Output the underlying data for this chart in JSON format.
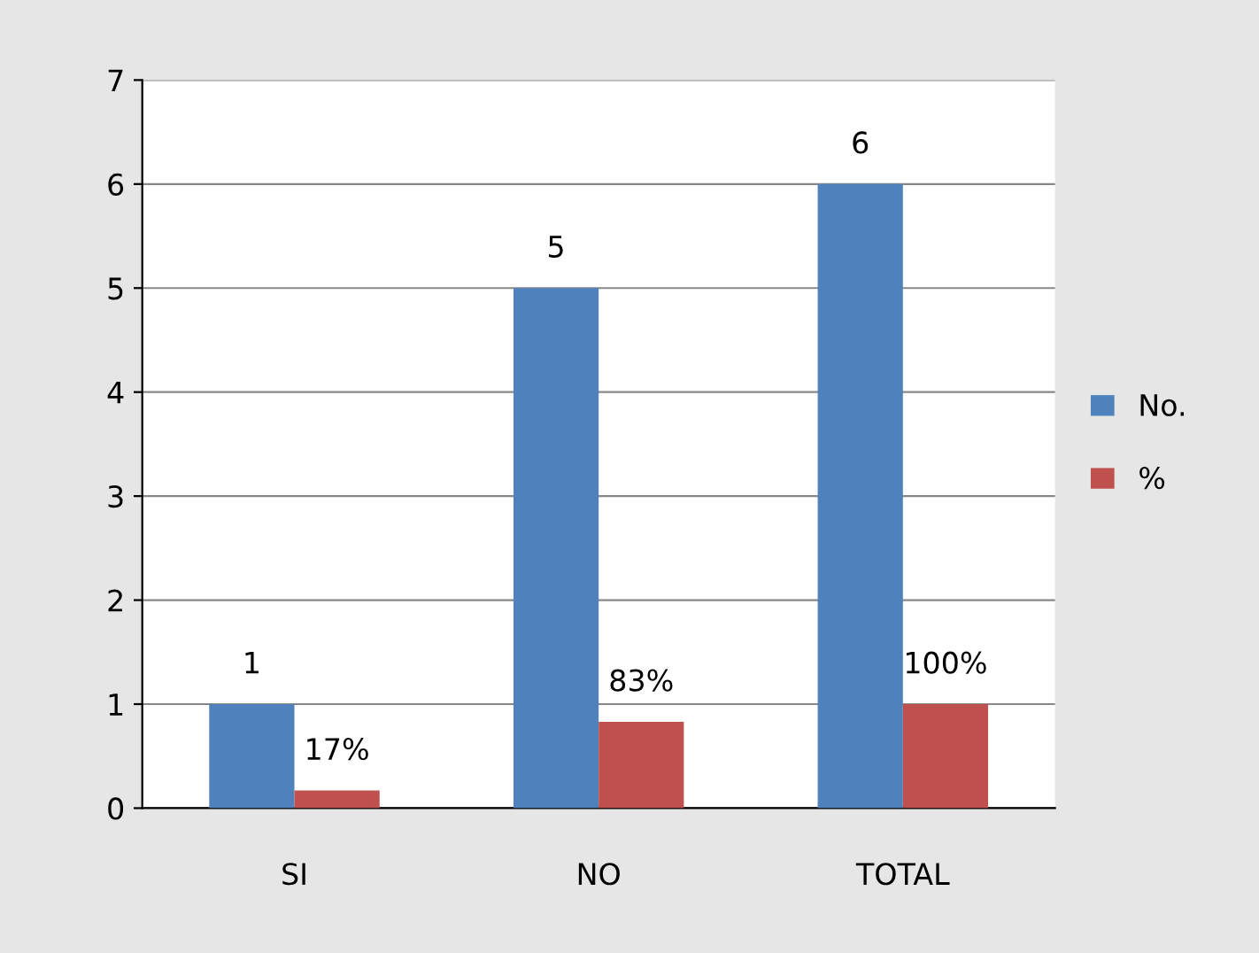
{
  "chart_data": {
    "type": "bar",
    "categories": [
      "SI",
      "NO",
      "TOTAL"
    ],
    "series": [
      {
        "name": "No.",
        "color": "#4f81bd",
        "values": [
          1,
          5,
          6
        ],
        "value_labels": [
          "1",
          "5",
          "6"
        ]
      },
      {
        "name": "%",
        "color": "#c0504d",
        "values": [
          0.17,
          0.83,
          1.0
        ],
        "value_labels": [
          "17%",
          "83%",
          "100%"
        ]
      }
    ],
    "ylim": [
      0,
      7
    ],
    "yticks": [
      0,
      1,
      2,
      3,
      4,
      5,
      6,
      7
    ],
    "grid": "y",
    "legend": "right"
  }
}
